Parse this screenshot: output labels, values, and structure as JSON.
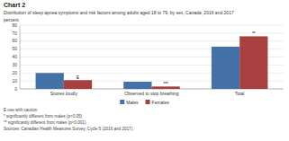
{
  "chart_data": {
    "type": "bar",
    "title": "Chart 2",
    "subtitle": "Distribution of sleep apnea symptoms and risk factors among adults aged 18 to 79, by sex, Canada, 2016 and 2017",
    "ylabel": "percent",
    "categories": [
      "Snores loudly",
      "Observed to stop breathing",
      "Total"
    ],
    "series": [
      {
        "name": "Males",
        "color": "#4472a8",
        "values": [
          20,
          9,
          53
        ]
      },
      {
        "name": "Females",
        "color": "#a84040",
        "values": [
          11,
          3,
          66
        ],
        "annotations": [
          "E",
          "***",
          "**"
        ]
      }
    ],
    "ylim": [
      0,
      80
    ],
    "yticks": [
      0,
      10,
      20,
      30,
      40,
      50,
      60,
      70,
      80
    ],
    "grid": true,
    "legend": "bottom",
    "footnotes": [
      "E use with caution",
      "* significantly different from males (p<0.05)",
      "** significantly different from males (p<0.001)",
      "Sources: Canadian Health Measures Survey, Cycle 5 (2016 and 2017)."
    ]
  }
}
